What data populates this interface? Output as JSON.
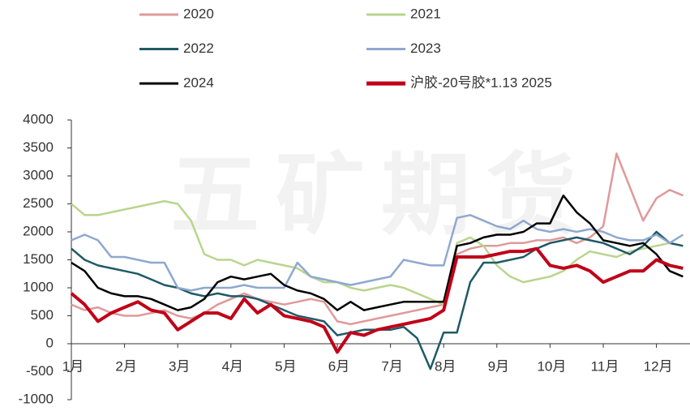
{
  "chart_data": {
    "type": "line",
    "watermark": "五矿期货",
    "categories": [
      "1月",
      null,
      null,
      null,
      "2月",
      null,
      null,
      null,
      "3月",
      null,
      null,
      null,
      "4月",
      null,
      null,
      null,
      "5月",
      null,
      null,
      null,
      "6月",
      null,
      null,
      null,
      "7月",
      null,
      null,
      null,
      "8月",
      null,
      null,
      null,
      "9月",
      null,
      null,
      null,
      "10月",
      null,
      null,
      null,
      "11月",
      null,
      null,
      null,
      "12月",
      null,
      null
    ],
    "ylim": [
      -1000,
      4000
    ],
    "yticks": [
      -1000,
      -500,
      0,
      500,
      1000,
      1500,
      2000,
      2500,
      3000,
      3500,
      4000
    ],
    "series": [
      {
        "name": "2020",
        "color": "#e0999a",
        "values": [
          700,
          600,
          650,
          550,
          500,
          500,
          550,
          600,
          500,
          450,
          550,
          700,
          800,
          900,
          800,
          750,
          700,
          750,
          800,
          750,
          400,
          350,
          400,
          450,
          500,
          550,
          600,
          650,
          700,
          1600,
          1700,
          1750,
          1750,
          1800,
          1800,
          1850,
          1850,
          1900,
          1800,
          1900,
          2100,
          3400,
          2800,
          2200,
          2600,
          2750,
          2650
        ]
      },
      {
        "name": "2021",
        "color": "#b9d58e",
        "values": [
          2500,
          2300,
          2300,
          2350,
          2400,
          2450,
          2500,
          2550,
          2500,
          2200,
          1600,
          1500,
          1500,
          1400,
          1500,
          1450,
          1400,
          1350,
          1200,
          1100,
          1100,
          1000,
          950,
          1000,
          1050,
          1000,
          900,
          800,
          700,
          1800,
          1900,
          1750,
          1400,
          1200,
          1100,
          1150,
          1200,
          1300,
          1500,
          1650,
          1600,
          1550,
          1650,
          1700,
          1750,
          1800,
          1750
        ]
      },
      {
        "name": "2022",
        "color": "#1f5a66",
        "values": [
          1700,
          1500,
          1400,
          1350,
          1300,
          1250,
          1150,
          1050,
          1000,
          900,
          850,
          900,
          850,
          850,
          800,
          700,
          600,
          500,
          450,
          400,
          150,
          200,
          250,
          250,
          250,
          300,
          100,
          -450,
          200,
          200,
          1100,
          1450,
          1450,
          1500,
          1550,
          1700,
          1800,
          1850,
          1900,
          1850,
          1800,
          1700,
          1600,
          1750,
          2000,
          1800,
          1750
        ]
      },
      {
        "name": "2023",
        "color": "#8fa8cf",
        "values": [
          1850,
          1950,
          1850,
          1550,
          1550,
          1500,
          1450,
          1450,
          1000,
          950,
          1000,
          1000,
          1000,
          1050,
          1000,
          1000,
          1000,
          1450,
          1200,
          1150,
          1100,
          1050,
          1100,
          1150,
          1200,
          1500,
          1450,
          1400,
          1400,
          2250,
          2300,
          2200,
          2100,
          2050,
          2200,
          2050,
          2000,
          2050,
          2000,
          2050,
          2000,
          1900,
          1850,
          1850,
          1950,
          1800,
          1950
        ]
      },
      {
        "name": "2024",
        "color": "#000000",
        "values": [
          1450,
          1300,
          1000,
          900,
          850,
          850,
          800,
          700,
          600,
          650,
          800,
          1100,
          1200,
          1150,
          1200,
          1250,
          1050,
          950,
          900,
          800,
          600,
          750,
          600,
          650,
          700,
          750,
          750,
          750,
          750,
          1750,
          1800,
          1900,
          1950,
          1950,
          2000,
          2150,
          2150,
          2650,
          2350,
          2150,
          1850,
          1800,
          1750,
          1800,
          1600,
          1300,
          1200
        ]
      },
      {
        "name": "沪胶-20号胶*1.13 2025",
        "color": "#c00018",
        "values": [
          900,
          700,
          400,
          550,
          650,
          750,
          600,
          550,
          250,
          400,
          550,
          550,
          450,
          800,
          550,
          700,
          500,
          450,
          400,
          300,
          -150,
          200,
          150,
          250,
          300,
          350,
          400,
          450,
          600,
          1550,
          1550,
          1550,
          1600,
          1650,
          1650,
          1700,
          1400,
          1350,
          1400,
          1300,
          1100,
          1200,
          1300,
          1300,
          1500,
          1400,
          1350
        ]
      }
    ]
  }
}
